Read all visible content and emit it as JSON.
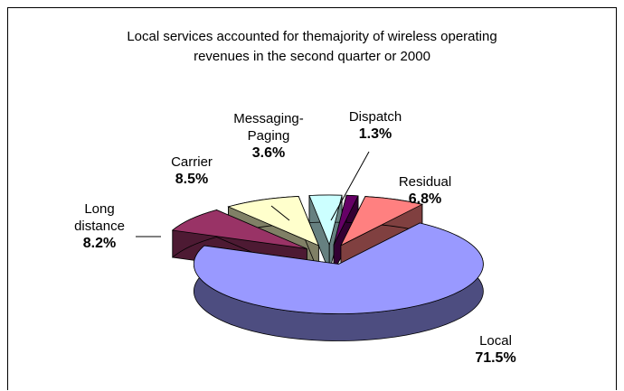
{
  "chart_data": {
    "type": "pie3d",
    "title": "Local services accounted for themajority of wireless operating revenues in the second quarter or 2000",
    "categories": [
      "Dispatch",
      "Residual",
      "Local",
      "Long distance",
      "Carrier",
      "Messaging-Paging"
    ],
    "values": [
      1.3,
      6.8,
      71.5,
      8.2,
      8.5,
      3.6
    ],
    "value_labels": [
      "1.3%",
      "6.8%",
      "71.5%",
      "8.2%",
      "8.5%",
      "3.6%"
    ],
    "colors": [
      "#660066",
      "#ff8080",
      "#9999ff",
      "#993366",
      "#ffffcc",
      "#ccffff"
    ]
  }
}
